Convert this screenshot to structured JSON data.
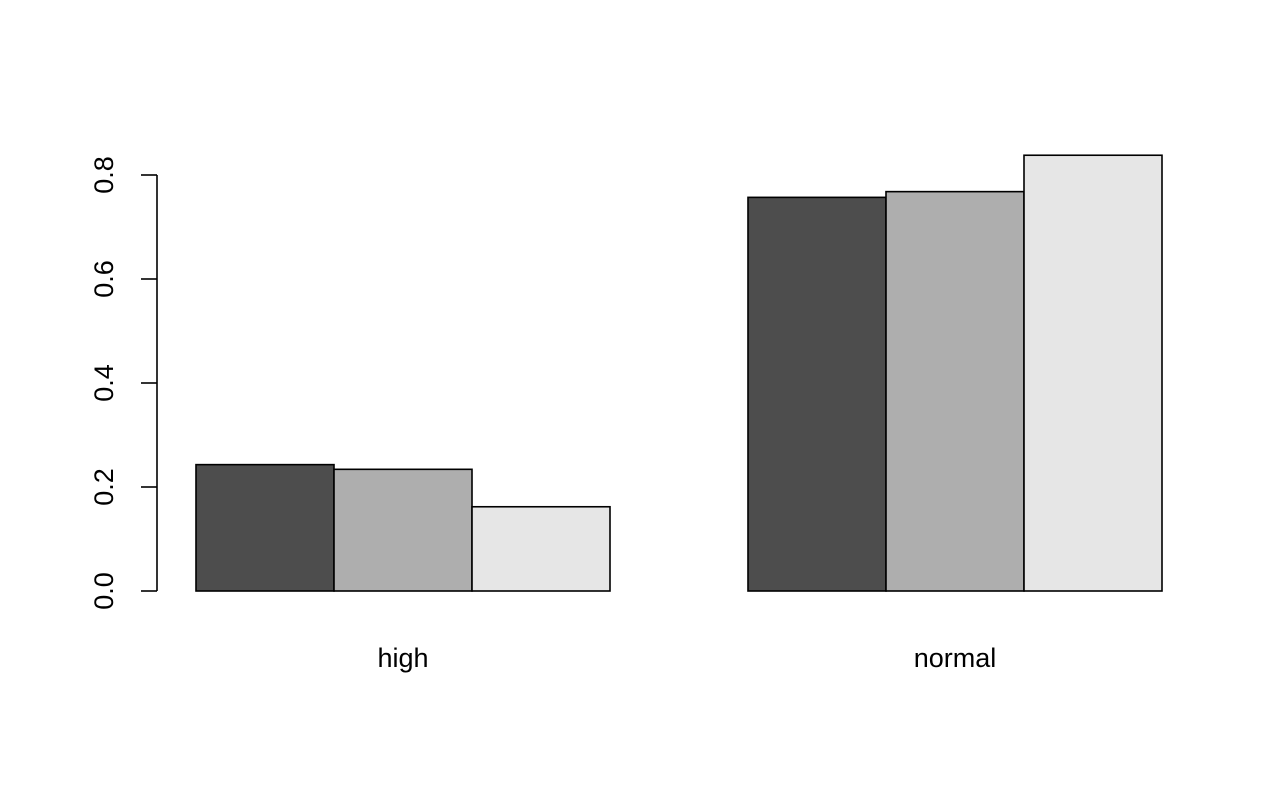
{
  "chart_data": {
    "type": "bar",
    "layout": "grouped",
    "title": "",
    "xlabel": "",
    "ylabel": "",
    "categories": [
      "high",
      "normal"
    ],
    "series": [
      {
        "color": "#4d4d4d",
        "values": [
          0.243,
          0.757
        ]
      },
      {
        "color": "#aeaeae",
        "values": [
          0.234,
          0.768
        ]
      },
      {
        "color": "#e6e6e6",
        "values": [
          0.162,
          0.838
        ]
      }
    ],
    "ylim": [
      0,
      0.8
    ],
    "yticks": [
      "0.0",
      "0.2",
      "0.4",
      "0.6",
      "0.8"
    ],
    "ytick_values": [
      0,
      0.2,
      0.4,
      0.6,
      0.8
    ],
    "grid": false,
    "legend": "none"
  }
}
